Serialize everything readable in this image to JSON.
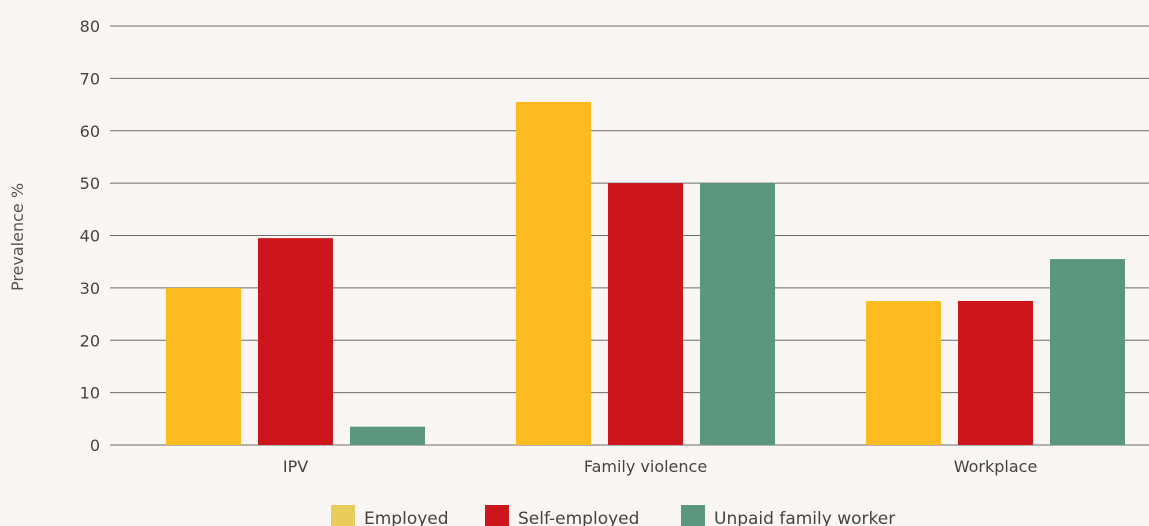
{
  "chart_data": {
    "type": "bar",
    "categories": [
      "IPV",
      "Family violence",
      "Workplace"
    ],
    "series": [
      {
        "name": "Employed",
        "values": [
          30,
          65.5,
          27.5
        ],
        "color": "#fbbb21"
      },
      {
        "name": "Self-employed",
        "values": [
          39.5,
          50,
          27.5
        ],
        "color": "#cc161c"
      },
      {
        "name": "Unpaid family worker",
        "values": [
          3.5,
          50,
          35.5
        ],
        "color": "#5b977e"
      }
    ],
    "legend_colors": [
      "#e8cc5c",
      "#cc161c",
      "#5b977e"
    ],
    "title": "",
    "xlabel": "",
    "ylabel": "Prevalence %",
    "ylim": [
      0,
      80
    ],
    "yticks": [
      0,
      10,
      20,
      30,
      40,
      50,
      60,
      70,
      80
    ],
    "grid": true,
    "legend_position": "bottom-center"
  }
}
